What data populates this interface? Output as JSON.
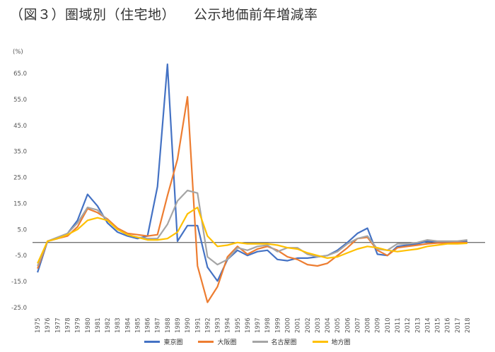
{
  "title": "（図３）圏域別（住宅地）",
  "subtitle": "公示地価前年増減率",
  "chart_data": {
    "type": "line",
    "title": "（図３）圏域別（住宅地）　公示地価前年増減率",
    "ylabel": "(%)",
    "xlabel": "",
    "ylim": [
      -25,
      65
    ],
    "yticks": [
      "65.0",
      "55.0",
      "45.0",
      "35.0",
      "25.0",
      "15.0",
      "5.0",
      "-5.0",
      "-15.0",
      "-25.0"
    ],
    "ytick_values": [
      65,
      55,
      45,
      35,
      25,
      15,
      5,
      -5,
      -15,
      -25
    ],
    "zero_line": true,
    "grid": false,
    "legend_position": "bottom",
    "categories": [
      "1975",
      "1976",
      "1977",
      "1978",
      "1979",
      "1980",
      "1981",
      "1982",
      "1983",
      "1984",
      "1985",
      "1986",
      "1987",
      "1988",
      "1989",
      "1990",
      "1991",
      "1992",
      "1993",
      "1994",
      "1995",
      "1996",
      "1997",
      "1998",
      "1999",
      "2000",
      "2001",
      "2002",
      "2003",
      "2004",
      "2005",
      "2006",
      "2007",
      "2008",
      "2009",
      "2010",
      "2011",
      "2012",
      "2013",
      "2014",
      "2015",
      "2016",
      "2017",
      "2018"
    ],
    "series": [
      {
        "name": "東京圏",
        "color": "#4472C4",
        "values": [
          -11.5,
          0.5,
          1.5,
          3.5,
          8.5,
          18.5,
          14.0,
          7.5,
          4.0,
          2.5,
          1.5,
          2.5,
          21.5,
          68.5,
          0.5,
          6.5,
          6.5,
          -9.5,
          -14.8,
          -6.5,
          -3.0,
          -5.0,
          -3.5,
          -3.0,
          -6.5,
          -7.0,
          -6.0,
          -6.0,
          -5.5,
          -5.0,
          -3.0,
          0.0,
          3.5,
          5.5,
          -4.5,
          -5.0,
          -1.5,
          -1.0,
          -0.5,
          0.5,
          0.2,
          0.2,
          0.2,
          0.5
        ]
      },
      {
        "name": "大阪圏",
        "color": "#ED7D31",
        "values": [
          -10.0,
          0.5,
          1.5,
          2.5,
          6.0,
          13.0,
          11.5,
          9.0,
          5.5,
          3.5,
          3.0,
          2.5,
          3.0,
          18.0,
          32.0,
          56.0,
          -9.0,
          -23.0,
          -17.0,
          -5.5,
          -1.5,
          -4.5,
          -2.5,
          -1.5,
          -3.0,
          -5.5,
          -6.5,
          -8.5,
          -9.0,
          -8.0,
          -5.0,
          -2.0,
          1.5,
          2.0,
          -3.0,
          -5.0,
          -2.0,
          -1.5,
          -1.0,
          -0.5,
          -0.2,
          -0.2,
          0.0,
          0.0
        ]
      },
      {
        "name": "名古屋圏",
        "color": "#A5A5A5",
        "values": [
          -9.0,
          0.5,
          2.0,
          3.5,
          7.5,
          13.5,
          12.5,
          8.5,
          5.0,
          3.0,
          2.0,
          1.5,
          1.5,
          7.0,
          16.0,
          20.0,
          19.0,
          -5.5,
          -8.5,
          -6.5,
          -2.0,
          -3.0,
          -1.5,
          -1.0,
          -3.5,
          -2.0,
          -2.0,
          -4.5,
          -5.5,
          -5.0,
          -3.5,
          -0.5,
          1.5,
          2.5,
          -2.5,
          -3.0,
          -0.5,
          -0.5,
          0.0,
          1.0,
          0.5,
          0.5,
          0.5,
          1.0
        ]
      },
      {
        "name": "地方圏",
        "color": "#FFC000",
        "values": [
          -8.0,
          0.5,
          1.5,
          3.0,
          5.0,
          8.5,
          9.5,
          8.5,
          5.0,
          3.0,
          2.0,
          1.0,
          1.0,
          1.5,
          4.0,
          11.0,
          13.5,
          2.5,
          -1.5,
          -1.0,
          0.0,
          -0.5,
          -0.5,
          -0.5,
          -1.0,
          -2.0,
          -2.5,
          -4.0,
          -5.0,
          -6.0,
          -5.5,
          -4.0,
          -2.5,
          -1.5,
          -2.0,
          -3.0,
          -3.5,
          -3.0,
          -2.5,
          -1.5,
          -1.0,
          -0.5,
          -0.5,
          -0.3
        ]
      }
    ]
  }
}
